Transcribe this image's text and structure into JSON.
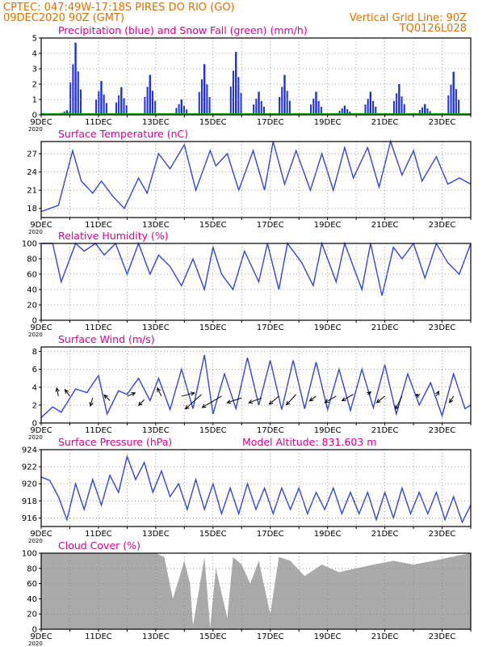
{
  "header": {
    "line1_left": "CPTEC:   047:49W-17:18S   PIRES DO RIO (GO)",
    "line2_left": "09DEC2020 90Z (GMT)",
    "line2_right": "Vertical Grid Line: 90Z",
    "line3_right": "TQ0126L028"
  },
  "colors": {
    "header": "#e07000",
    "title": "#e0008c",
    "line": "#3344dd",
    "bar": "#1f2fe0",
    "snow": "#00aa00",
    "cloud": "#aaaaaa"
  },
  "x_ticks": [
    "9DEC",
    "11DEC",
    "13DEC",
    "15DEC",
    "17DEC",
    "19DEC",
    "21DEC",
    "23DEC"
  ],
  "year_label": "2020",
  "chart_data": [
    {
      "type": "bar",
      "title": "Precipitation (blue) and Snow Fall (green) (mm/h)",
      "x_range_days": [
        9,
        24
      ],
      "ylim": [
        0,
        5
      ],
      "yticks": [
        "0",
        "1",
        "2",
        "3",
        "4",
        "5"
      ],
      "series": [
        {
          "name": "Precipitation",
          "x_day": [
            9.9,
            10.2,
            11.1,
            11.8,
            12.8,
            13.9,
            14.7,
            15.8,
            16.6,
            17.5,
            18.6,
            19.6,
            20.5,
            21.5,
            22.4,
            23.4
          ],
          "values": [
            0.3,
            4.7,
            2.2,
            1.8,
            2.6,
            1.0,
            3.3,
            4.1,
            1.5,
            2.6,
            1.5,
            0.6,
            1.5,
            2.0,
            0.7,
            2.8
          ]
        },
        {
          "name": "Snow Fall",
          "x_day": [
            9,
            24
          ],
          "values": [
            0,
            0
          ]
        }
      ]
    },
    {
      "type": "line",
      "title": "Surface Temperature (nC)",
      "ylim": [
        16.5,
        29
      ],
      "yticks": [
        "18",
        "21",
        "24",
        "27"
      ],
      "x_day": [
        9.0,
        9.6,
        10.1,
        10.4,
        10.8,
        11.1,
        11.5,
        11.9,
        12.4,
        12.7,
        13.1,
        13.5,
        14.0,
        14.4,
        14.9,
        15.1,
        15.5,
        15.9,
        16.4,
        16.8,
        17.1,
        17.5,
        17.9,
        18.4,
        18.8,
        19.2,
        19.6,
        19.9,
        20.4,
        20.8,
        21.2,
        21.6,
        22.0,
        22.3,
        22.8,
        23.2,
        23.6,
        24.0
      ],
      "values": [
        17.5,
        18.5,
        27.5,
        22.5,
        20.5,
        22.5,
        20.0,
        18.0,
        23.0,
        20.5,
        27.0,
        24.5,
        28.5,
        21.0,
        27.5,
        25.0,
        27.0,
        21.0,
        27.5,
        21.0,
        29.0,
        22.0,
        27.5,
        21.0,
        27.0,
        21.0,
        28.0,
        23.0,
        28.0,
        21.5,
        29.0,
        23.5,
        27.5,
        22.5,
        26.5,
        22.0,
        23.0,
        22.0
      ]
    },
    {
      "type": "line",
      "title": "Relative Humidity (%)",
      "ylim": [
        0,
        100
      ],
      "yticks": [
        "0",
        "20",
        "40",
        "60",
        "80",
        "100"
      ],
      "x_day": [
        9.0,
        9.4,
        9.7,
        10.2,
        10.5,
        10.9,
        11.2,
        11.6,
        12.0,
        12.4,
        12.8,
        13.1,
        13.5,
        13.9,
        14.3,
        14.7,
        15.0,
        15.3,
        15.7,
        16.1,
        16.6,
        16.9,
        17.3,
        17.6,
        18.1,
        18.5,
        18.8,
        19.3,
        19.6,
        20.2,
        20.5,
        20.9,
        21.3,
        21.6,
        22.0,
        22.4,
        22.8,
        23.2,
        23.6,
        24.0
      ],
      "values": [
        100,
        100,
        50,
        100,
        90,
        100,
        85,
        100,
        60,
        100,
        60,
        85,
        70,
        45,
        80,
        40,
        95,
        60,
        40,
        90,
        50,
        100,
        40,
        100,
        75,
        45,
        100,
        50,
        100,
        40,
        100,
        32,
        95,
        80,
        100,
        55,
        100,
        75,
        60,
        100
      ]
    },
    {
      "type": "line",
      "title": "Surface Wind (m/s)",
      "ylim": [
        0,
        8.5
      ],
      "yticks": [
        "0",
        "2",
        "4",
        "6",
        "8"
      ],
      "x_day": [
        9.0,
        9.4,
        9.7,
        10.2,
        10.6,
        11.0,
        11.3,
        11.7,
        12.0,
        12.4,
        12.8,
        13.1,
        13.5,
        13.9,
        14.3,
        14.7,
        15.0,
        15.4,
        15.8,
        16.2,
        16.6,
        17.0,
        17.4,
        17.8,
        18.2,
        18.6,
        19.0,
        19.4,
        19.8,
        20.2,
        20.6,
        21.0,
        21.4,
        21.8,
        22.2,
        22.6,
        23.0,
        23.4,
        23.8,
        24.0
      ],
      "values": [
        0.6,
        1.8,
        1.2,
        3.8,
        3.4,
        5.3,
        1.0,
        3.6,
        3.2,
        5.0,
        2.5,
        5.0,
        1.5,
        6.0,
        1.6,
        7.6,
        1.0,
        5.5,
        1.6,
        7.3,
        2.0,
        7.0,
        1.5,
        7.0,
        1.6,
        6.8,
        1.5,
        6.0,
        1.4,
        6.0,
        1.7,
        6.5,
        1.0,
        5.5,
        2.0,
        4.5,
        0.8,
        5.5,
        1.6,
        2.0
      ],
      "wind_barbs": [
        {
          "x_day": 9.6,
          "y": 3.0,
          "u": -0.2,
          "v": 1.0
        },
        {
          "x_day": 10.0,
          "y": 3.0,
          "u": -0.6,
          "v": 0.8
        },
        {
          "x_day": 10.8,
          "y": 2.8,
          "u": -0.3,
          "v": -1.0
        },
        {
          "x_day": 11.4,
          "y": 2.5,
          "u": -0.7,
          "v": 0.7
        },
        {
          "x_day": 12.0,
          "y": 3.0,
          "u": 1.0,
          "v": 0.4
        },
        {
          "x_day": 12.6,
          "y": 2.6,
          "u": -0.7,
          "v": -0.7
        },
        {
          "x_day": 13.2,
          "y": 3.0,
          "u": -0.5,
          "v": 1.0
        },
        {
          "x_day": 13.9,
          "y": 3.0,
          "u": 1.6,
          "v": 0.4
        },
        {
          "x_day": 14.6,
          "y": 3.2,
          "u": -2.0,
          "v": -1.8
        },
        {
          "x_day": 15.3,
          "y": 3.0,
          "u": -2.4,
          "v": -1.4
        },
        {
          "x_day": 16.0,
          "y": 2.8,
          "u": -1.8,
          "v": -0.6
        },
        {
          "x_day": 16.7,
          "y": 2.8,
          "u": -1.6,
          "v": -0.6
        },
        {
          "x_day": 17.3,
          "y": 3.0,
          "u": -1.2,
          "v": -1.0
        },
        {
          "x_day": 17.9,
          "y": 3.2,
          "u": -1.2,
          "v": -1.3
        },
        {
          "x_day": 18.6,
          "y": 3.0,
          "u": -0.8,
          "v": -0.6
        },
        {
          "x_day": 19.3,
          "y": 3.0,
          "u": -1.4,
          "v": -0.8
        },
        {
          "x_day": 19.9,
          "y": 3.2,
          "u": -1.4,
          "v": -0.8
        },
        {
          "x_day": 20.4,
          "y": 3.2,
          "u": 0.4,
          "v": 0.3
        },
        {
          "x_day": 21.0,
          "y": 3.0,
          "u": -1.0,
          "v": -0.8
        },
        {
          "x_day": 21.6,
          "y": 3.0,
          "u": -0.8,
          "v": -1.6
        },
        {
          "x_day": 22.2,
          "y": 3.0,
          "u": -0.4,
          "v": 0.2
        },
        {
          "x_day": 22.8,
          "y": 3.0,
          "u": 0.3,
          "v": 0.6
        },
        {
          "x_day": 23.4,
          "y": 3.0,
          "u": -0.5,
          "v": -0.8
        }
      ]
    },
    {
      "type": "line",
      "title": "Surface Pressure (hPa)",
      "annotation": "Model Altitude: 831.603  m",
      "ylim": [
        915,
        924
      ],
      "yticks": [
        "916",
        "918",
        "920",
        "922",
        "924"
      ],
      "x_day": [
        9.0,
        9.3,
        9.6,
        9.9,
        10.2,
        10.5,
        10.8,
        11.1,
        11.4,
        11.7,
        12.0,
        12.3,
        12.6,
        12.9,
        13.2,
        13.5,
        13.8,
        14.1,
        14.4,
        14.7,
        15.0,
        15.3,
        15.6,
        15.9,
        16.2,
        16.5,
        16.8,
        17.1,
        17.4,
        17.7,
        18.0,
        18.3,
        18.6,
        18.9,
        19.2,
        19.5,
        19.8,
        20.1,
        20.4,
        20.7,
        21.0,
        21.3,
        21.6,
        21.9,
        22.2,
        22.5,
        22.8,
        23.1,
        23.4,
        23.7,
        24.0
      ],
      "values": [
        920.8,
        920.4,
        918.5,
        915.8,
        920.0,
        917.0,
        920.5,
        917.5,
        921.0,
        919.0,
        923.2,
        920.5,
        922.5,
        919.0,
        921.5,
        918.5,
        920.0,
        917.0,
        920.5,
        917.0,
        920.0,
        916.5,
        919.5,
        916.5,
        920.0,
        917.0,
        919.5,
        916.5,
        919.5,
        917.0,
        919.5,
        916.5,
        919.0,
        917.0,
        919.5,
        916.5,
        919.0,
        916.5,
        919.0,
        915.8,
        919.0,
        916.0,
        919.5,
        916.5,
        919.0,
        916.5,
        919.0,
        915.8,
        918.5,
        915.5,
        917.5
      ]
    },
    {
      "type": "area",
      "title": "Cloud Cover (%)",
      "ylim": [
        0,
        100
      ],
      "yticks": [
        "0",
        "20",
        "40",
        "60",
        "80",
        "100"
      ],
      "x_day": [
        9.0,
        13.0,
        13.3,
        13.6,
        14.0,
        14.2,
        14.3,
        14.5,
        14.7,
        14.9,
        15.1,
        15.5,
        15.7,
        16.0,
        16.3,
        16.6,
        17.0,
        17.3,
        17.7,
        18.2,
        18.8,
        19.4,
        20.0,
        20.6,
        21.3,
        22.0,
        22.7,
        23.3,
        24.0
      ],
      "values": [
        100,
        100,
        95,
        40,
        90,
        60,
        5,
        50,
        95,
        2,
        80,
        15,
        95,
        85,
        60,
        90,
        20,
        95,
        90,
        70,
        85,
        75,
        80,
        85,
        90,
        85,
        90,
        95,
        100
      ]
    }
  ]
}
